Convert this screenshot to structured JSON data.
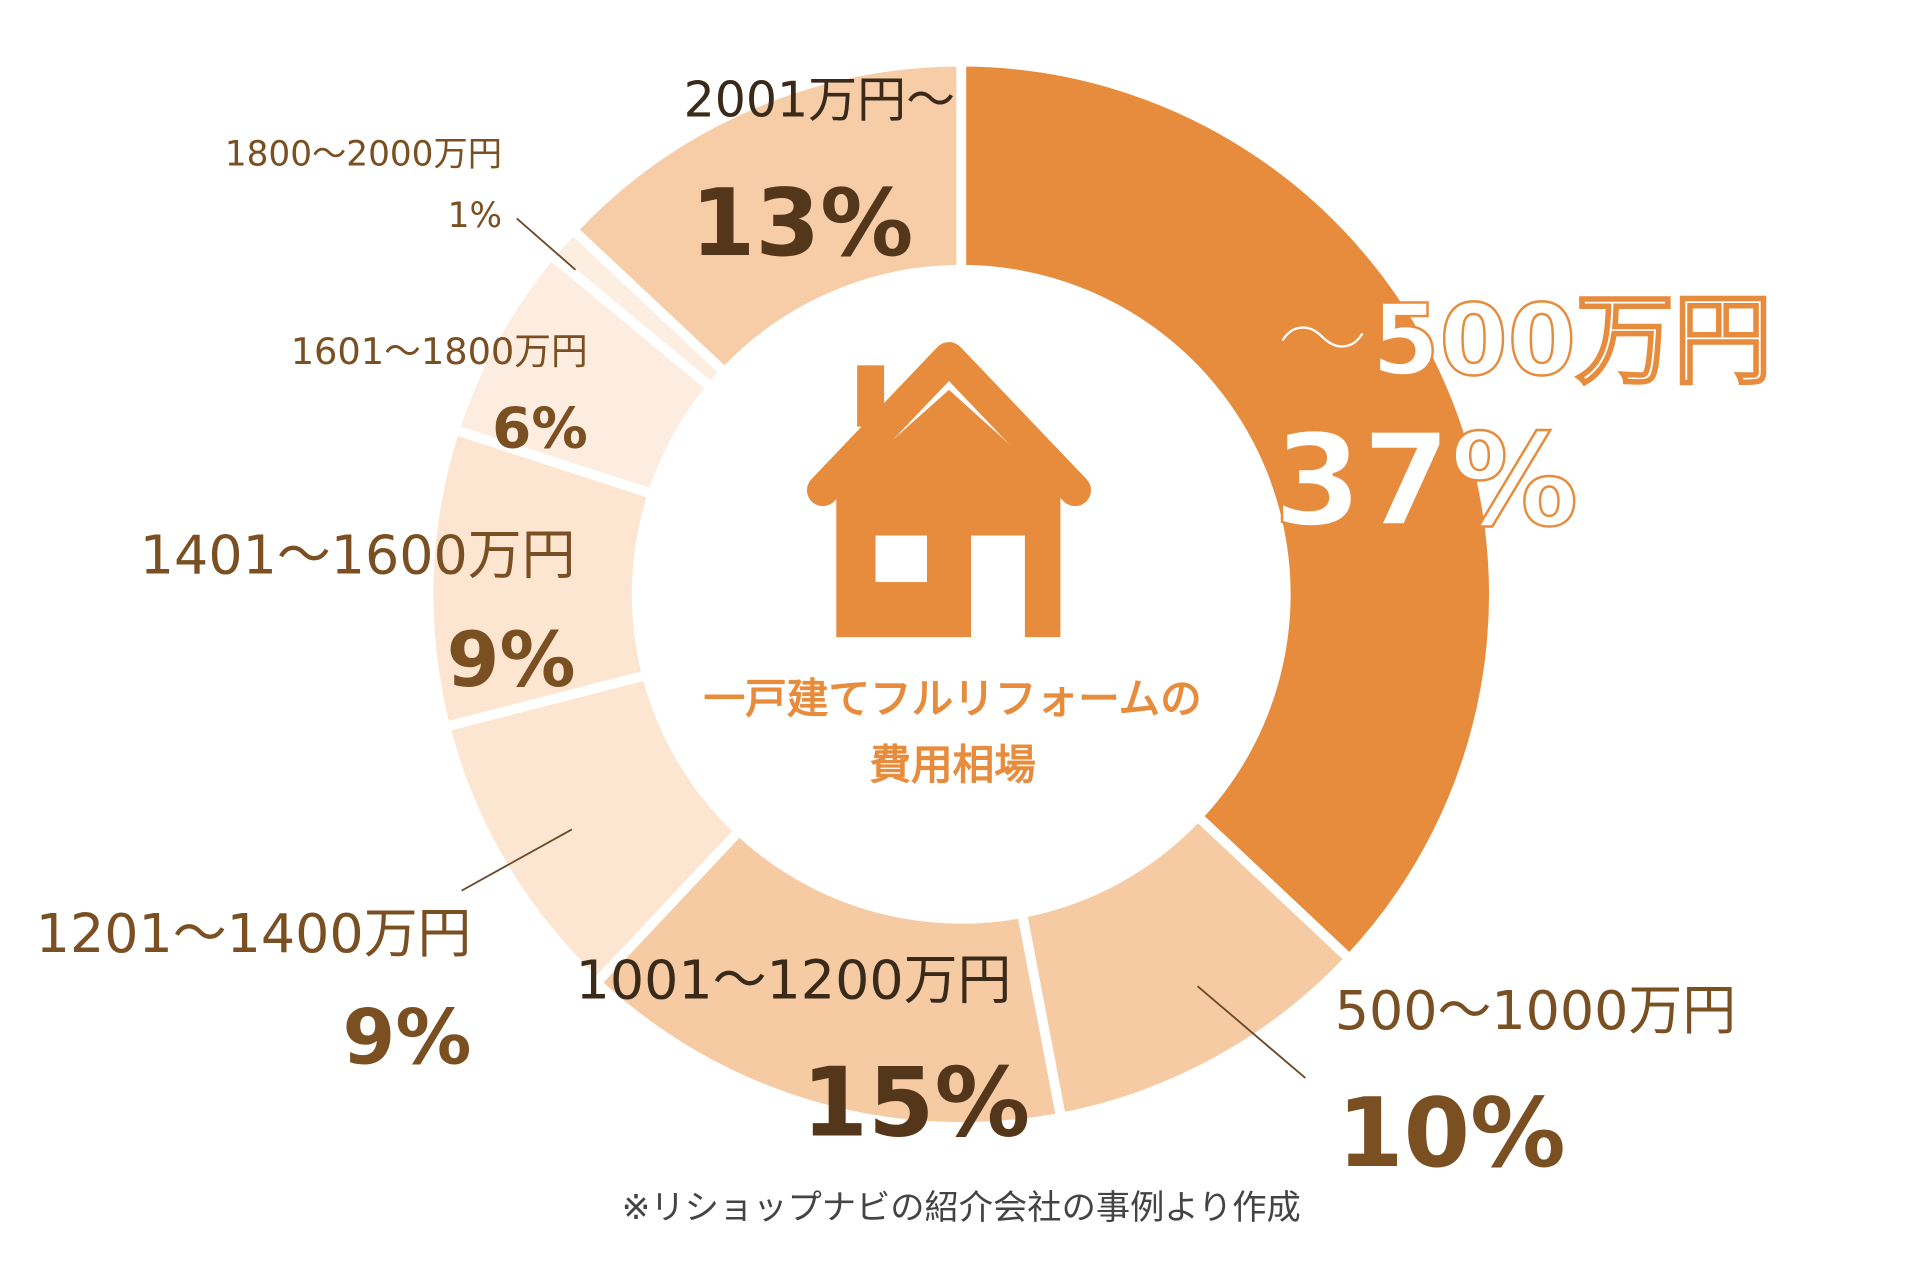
{
  "chart_data": {
    "type": "pie",
    "variant": "donut",
    "title": "一戸建てフルリフォームの費用相場",
    "title_lines": [
      "一戸建てフルリフォームの",
      "費用相場"
    ],
    "unit": "%",
    "start": "top",
    "direction": "clockwise",
    "slices": [
      {
        "label": "〜500万円",
        "value": 37,
        "display": "37%",
        "color": "#e68c3c"
      },
      {
        "label": "500〜1000万円",
        "value": 10,
        "display": "10%",
        "color": "#f6cba4"
      },
      {
        "label": "1001〜1200万円",
        "value": 15,
        "display": "15%",
        "color": "#f6cba4"
      },
      {
        "label": "1201〜1400万円",
        "value": 9,
        "display": "9%",
        "color": "#fce6d2"
      },
      {
        "label": "1401〜1600万円",
        "value": 9,
        "display": "9%",
        "color": "#fce6d2"
      },
      {
        "label": "1601〜1800万円",
        "value": 6,
        "display": "6%",
        "color": "#fdede0"
      },
      {
        "label": "1800〜2000万円",
        "value": 1,
        "display": "1%",
        "color": "#fdeee2"
      },
      {
        "label": "2001万円〜",
        "value": 13,
        "display": "13%",
        "color": "#f6cda7"
      }
    ],
    "center_icon": "house-icon",
    "footnote": "※リショップナビの紹介会社の事例より作成"
  }
}
